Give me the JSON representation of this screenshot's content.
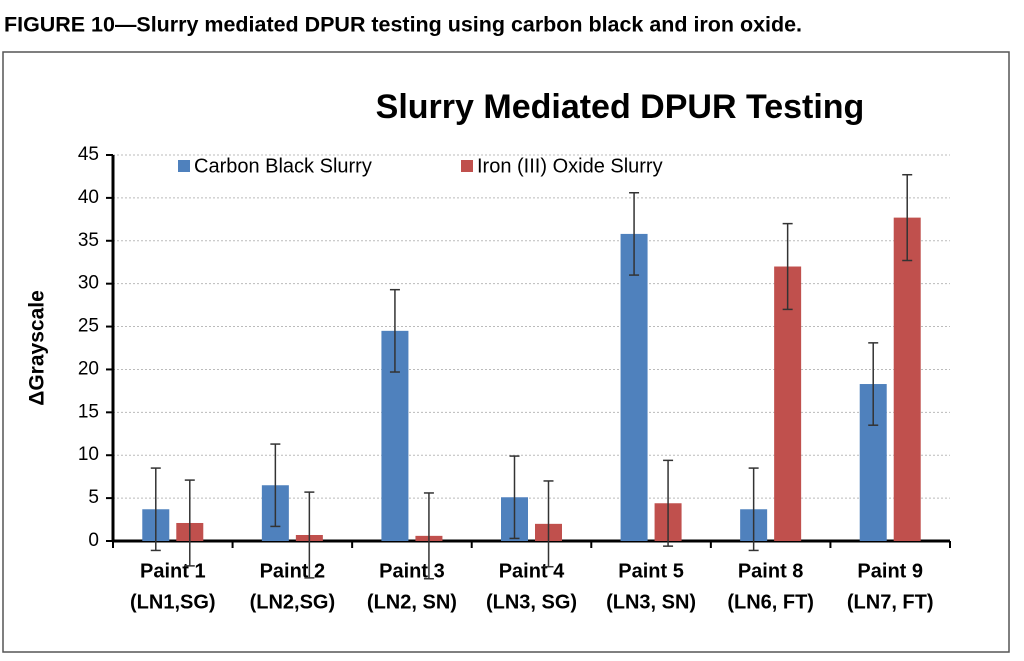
{
  "caption": "FIGURE 10—Slurry mediated DPUR testing using carbon black and iron oxide.",
  "chart_data": {
    "type": "bar",
    "title": "Slurry Mediated DPUR Testing",
    "y_label": "ΔGrayscale",
    "categories": [
      [
        "Paint 1",
        "(LN1,SG)"
      ],
      [
        "Paint 2",
        "(LN2,SG)"
      ],
      [
        "Paint 3",
        "(LN2, SN)"
      ],
      [
        "Paint 4",
        "(LN3, SG)"
      ],
      [
        "Paint 5",
        "(LN3, SN)"
      ],
      [
        "Paint 8",
        "(LN6, FT)"
      ],
      [
        "Paint 9",
        "(LN7, FT)"
      ]
    ],
    "series": [
      {
        "name": "Carbon Black Slurry",
        "color": "#4f81bd",
        "values": [
          3.7,
          6.5,
          24.5,
          5.1,
          35.8,
          3.7,
          18.3
        ],
        "errors": [
          4.8,
          4.8,
          4.8,
          4.8,
          4.8,
          4.8,
          4.8
        ]
      },
      {
        "name": "Iron (III) Oxide Slurry",
        "color": "#c0504d",
        "values": [
          2.1,
          0.7,
          0.6,
          2.0,
          4.4,
          32.0,
          37.7
        ],
        "errors": [
          5.0,
          5.0,
          5.0,
          5.0,
          5.0,
          5.0,
          5.0
        ]
      }
    ],
    "ylim": [
      0,
      45
    ],
    "yticks": [
      0,
      5,
      10,
      15,
      20,
      25,
      30,
      35,
      40,
      45
    ],
    "grid": true,
    "legend": "top"
  }
}
